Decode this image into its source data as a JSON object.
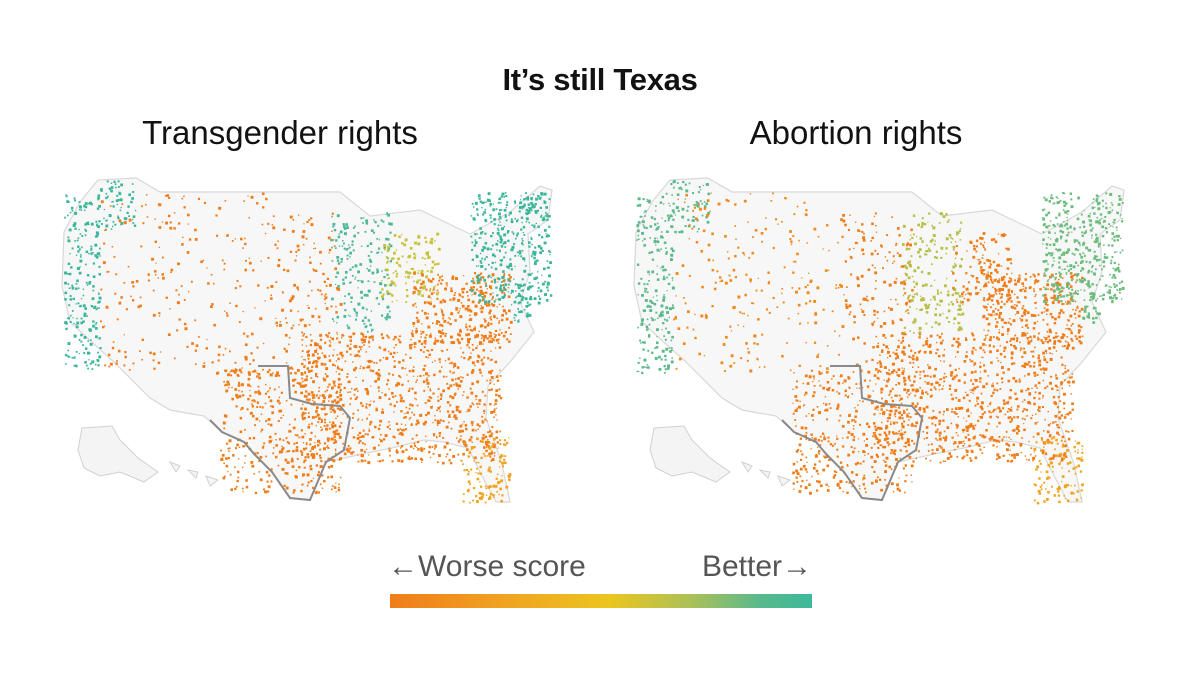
{
  "title": "It’s still Texas",
  "maps": [
    {
      "heading": "Transgender rights",
      "regions": {
        "pacific": "#3bb69a",
        "mountain": "#ef7d1a",
        "plains": "#ef7d1a",
        "south": "#ef7d1a",
        "texas": "#ef7d1a",
        "upper_midwest": "#4fb89a",
        "great_lakes": "#c9c23a",
        "ohio_valley": "#ef7d1a",
        "northeast": "#3bb69a",
        "florida": "#f0a421"
      }
    },
    {
      "heading": "Abortion rights",
      "regions": {
        "pacific": "#5bb98a",
        "mountain": "#ef8a1e",
        "plains": "#ef7d1a",
        "south": "#ef7d1a",
        "texas": "#ef7d1a",
        "upper_midwest": "#b7c048",
        "great_lakes": "#ef7d1a",
        "ohio_valley": "#ef7d1a",
        "northeast": "#6cbc7e",
        "florida": "#f0a421"
      }
    }
  ],
  "legend": {
    "worse": "←Worse score",
    "better": "Better→",
    "gradient": [
      "#ef7d1a",
      "#f0a421",
      "#ecc51f",
      "#a9c05a",
      "#57b98d",
      "#3cb99b"
    ]
  }
}
